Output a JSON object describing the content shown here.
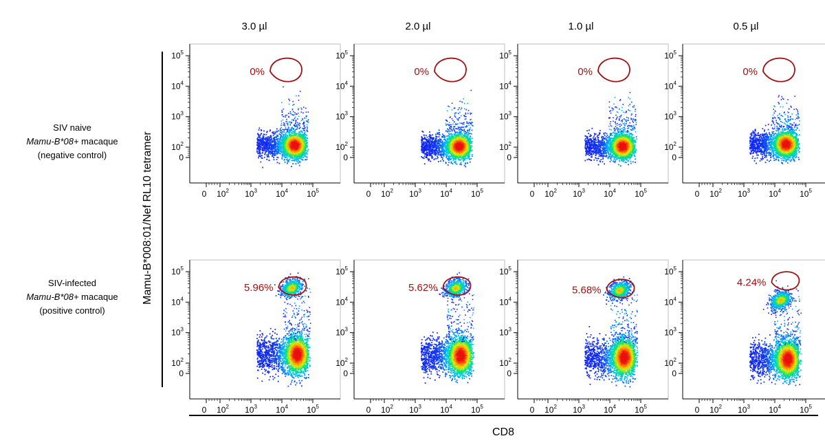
{
  "chart_data": {
    "type": "scatter",
    "plot_style": "flow cytometry density dot plots",
    "xlabel": "CD8",
    "ylabel": "Mamu-B*008:01/Nef RL10 tetramer",
    "x_axis": {
      "scale": "biexponential",
      "tick_labels": [
        "0",
        "10^2",
        "10^3",
        "10^4",
        "10^5"
      ]
    },
    "y_axis": {
      "scale": "biexponential",
      "tick_labels": [
        "0",
        "10^2",
        "10^3",
        "10^4",
        "10^5"
      ]
    },
    "grid": false,
    "columns": [
      {
        "label": "3.0 µl"
      },
      {
        "label": "2.0 µl"
      },
      {
        "label": "1.0 µl"
      },
      {
        "label": "0.5 µl"
      }
    ],
    "rows": [
      {
        "line1": "SIV naive",
        "italic": "Mamu-B*08+",
        "suffix": " macaque",
        "line3": "(negative control)"
      },
      {
        "line1": "SIV-infected",
        "italic": "Mamu-B*08+",
        "suffix": " macaque",
        "line3": "(positive control)"
      }
    ],
    "gate_color": "#a01010",
    "panels": [
      [
        {
          "gate_percent": "0%",
          "main_center": [
            25000,
            120
          ],
          "tetramer_cluster": null
        },
        {
          "gate_percent": "0%",
          "main_center": [
            25000,
            110
          ],
          "tetramer_cluster": null
        },
        {
          "gate_percent": "0%",
          "main_center": [
            25000,
            110
          ],
          "tetramer_cluster": null
        },
        {
          "gate_percent": "0%",
          "main_center": [
            22000,
            130
          ],
          "tetramer_cluster": null
        }
      ],
      [
        {
          "gate_percent": "5.96%",
          "main_center": [
            30000,
            200
          ],
          "tetramer_cluster": [
            20000,
            30000
          ]
        },
        {
          "gate_percent": "5.62%",
          "main_center": [
            28000,
            180
          ],
          "tetramer_cluster": [
            20000,
            30000
          ]
        },
        {
          "gate_percent": "5.68%",
          "main_center": [
            28000,
            160
          ],
          "tetramer_cluster": [
            20000,
            25000
          ]
        },
        {
          "gate_percent": "4.24%",
          "main_center": [
            25000,
            140
          ],
          "tetramer_cluster": [
            15000,
            12000
          ]
        }
      ]
    ]
  }
}
